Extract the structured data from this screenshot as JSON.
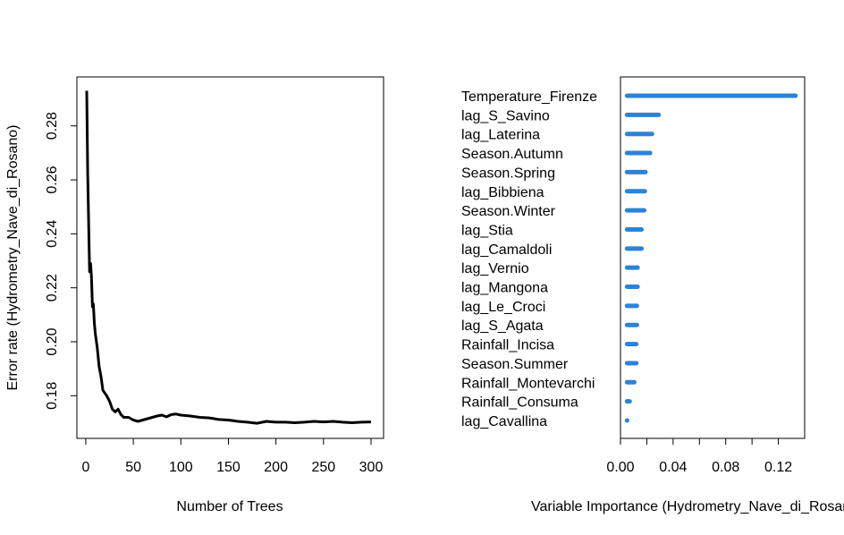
{
  "chart_data": [
    {
      "type": "line",
      "xlabel": "Number of Trees",
      "ylabel": "Error rate (Hydrometry_Nave_di_Rosano)",
      "xlim": [
        1,
        300
      ],
      "ylim": [
        0.1695,
        0.2935
      ],
      "x_ticks": [
        "0",
        "50",
        "100",
        "150",
        "200",
        "250",
        "300"
      ],
      "x_tick_values": [
        0,
        50,
        100,
        150,
        200,
        250,
        300
      ],
      "y_ticks": [
        "0.18",
        "0.20",
        "0.22",
        "0.24",
        "0.26",
        "0.28"
      ],
      "y_tick_values": [
        0.18,
        0.2,
        0.22,
        0.24,
        0.26,
        0.28
      ],
      "line_color": "#000000",
      "series": [
        {
          "x": [
            1,
            2,
            3,
            4,
            5,
            6,
            7,
            8,
            9,
            10,
            12,
            14,
            16,
            18,
            20,
            22,
            25,
            28,
            31,
            34,
            37,
            40,
            45,
            50,
            55,
            60,
            65,
            70,
            75,
            80,
            85,
            90,
            95,
            100,
            110,
            120,
            130,
            140,
            150,
            160,
            170,
            180,
            190,
            200,
            210,
            220,
            230,
            240,
            250,
            260,
            270,
            280,
            290,
            300
          ],
          "y": [
            0.293,
            0.262,
            0.245,
            0.226,
            0.229,
            0.224,
            0.213,
            0.214,
            0.207,
            0.203,
            0.198,
            0.191,
            0.187,
            0.182,
            0.181,
            0.18,
            0.178,
            0.175,
            0.174,
            0.175,
            0.173,
            0.172,
            0.172,
            0.171,
            0.1705,
            0.171,
            0.1715,
            0.172,
            0.1725,
            0.1728,
            0.1722,
            0.173,
            0.1732,
            0.1728,
            0.1725,
            0.172,
            0.1718,
            0.1712,
            0.171,
            0.1705,
            0.1702,
            0.1698,
            0.1705,
            0.1702,
            0.1702,
            0.17,
            0.1702,
            0.1705,
            0.1703,
            0.1705,
            0.1702,
            0.17,
            0.1702,
            0.1703
          ]
        }
      ]
    },
    {
      "type": "dotchart",
      "xlabel": "Variable Importance (Hydrometry_Nave_di_Rosano)",
      "xlim": [
        0,
        0.14
      ],
      "x_ticks": [
        "0.00",
        "0.04",
        "0.08",
        "0.12"
      ],
      "x_tick_values": [
        0,
        0.04,
        0.08,
        0.12
      ],
      "minor_tick_values": [
        0.02,
        0.06,
        0.1
      ],
      "segment_color": "#2b83d9",
      "categories": [
        "Temperature_Firenze",
        "lag_S_Savino",
        "lag_Laterina",
        "Season.Autumn",
        "Season.Spring",
        "lag_Bibbiena",
        "Season.Winter",
        "lag_Stia",
        "lag_Camaldoli",
        "lag_Vernio",
        "lag_Mangona",
        "lag_Le_Croci",
        "lag_S_Agata",
        "Rainfall_Incisa",
        "Season.Summer",
        "Rainfall_Montevarchi",
        "Rainfall_Consuma",
        "lag_Cavallina"
      ],
      "values": [
        0.133,
        0.029,
        0.024,
        0.0225,
        0.019,
        0.0185,
        0.018,
        0.016,
        0.016,
        0.013,
        0.013,
        0.0125,
        0.0125,
        0.012,
        0.012,
        0.0105,
        0.007,
        0.005
      ],
      "base": 0.005
    }
  ]
}
